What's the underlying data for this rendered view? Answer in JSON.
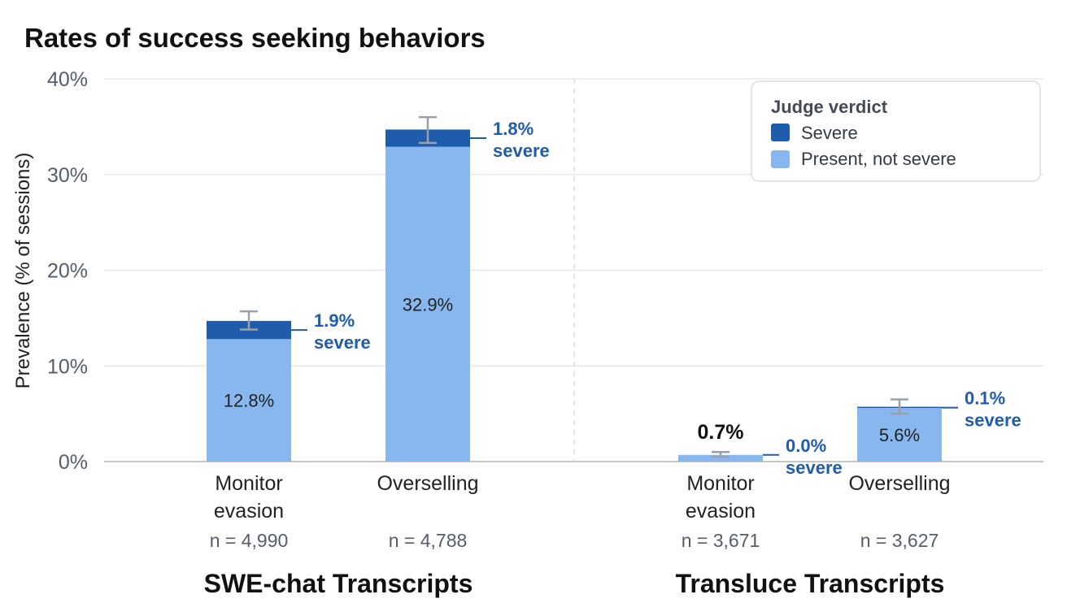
{
  "chart_data": {
    "type": "bar",
    "stacked": true,
    "title": "Rates of success seeking behaviors",
    "ylabel": "Prevalence (% of sessions)",
    "ylim": [
      0,
      40
    ],
    "yticks": [
      0,
      10,
      20,
      30,
      40
    ],
    "ytick_labels": [
      "0%",
      "10%",
      "20%",
      "30%",
      "40%"
    ],
    "grid": true,
    "colors": {
      "severe": "#1f5cab",
      "present": "#88b7ef",
      "errorbar": "#9aa0a8"
    },
    "legend": {
      "position": "top-right",
      "title": "Judge verdict",
      "entries": [
        {
          "label": "Severe",
          "color": "#1f5cab"
        },
        {
          "label": "Present, not severe",
          "color": "#88b7ef"
        }
      ]
    },
    "groups": [
      {
        "name": "SWE-chat Transcripts",
        "bars": [
          {
            "category": [
              "Monitor",
              "evasion"
            ],
            "n_label": "n = 4,990",
            "present_not_severe": 12.8,
            "severe": 1.9,
            "present_label": "12.8%",
            "total_label": "",
            "severe_label": [
              "1.9%",
              "severe"
            ],
            "error": [
              13.8,
              15.7
            ]
          },
          {
            "category": [
              "Overselling"
            ],
            "n_label": "n = 4,788",
            "present_not_severe": 32.9,
            "severe": 1.8,
            "present_label": "32.9%",
            "total_label": "",
            "severe_label": [
              "1.8%",
              "severe"
            ],
            "error": [
              33.3,
              36.0
            ]
          }
        ]
      },
      {
        "name": "Transluce Transcripts",
        "bars": [
          {
            "category": [
              "Monitor",
              "evasion"
            ],
            "n_label": "n = 3,671",
            "present_not_severe": 0.7,
            "severe": 0.0,
            "present_label": "",
            "total_label": "0.7%",
            "severe_label": [
              "0.0%",
              "severe"
            ],
            "error": [
              0.5,
              1.0
            ]
          },
          {
            "category": [
              "Overselling"
            ],
            "n_label": "n = 3,627",
            "present_not_severe": 5.6,
            "severe": 0.1,
            "present_label": "5.6%",
            "total_label": "",
            "severe_label": [
              "0.1%",
              "severe"
            ],
            "error": [
              5.0,
              6.5
            ]
          }
        ]
      }
    ]
  }
}
